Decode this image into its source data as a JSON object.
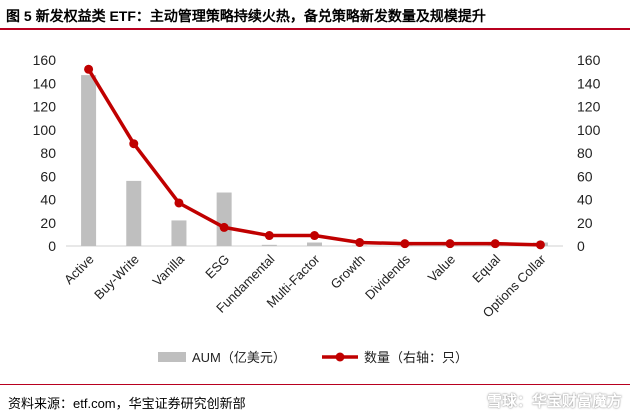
{
  "title": "图 5    新发权益类 ETF：主动管理策略持续火热，备兑策略新发数量及规模提升",
  "source": "资料来源：etf.com，华宝证券研究创新部",
  "watermark": "雪球：华宝财富魔方",
  "colors": {
    "accent": "#b8001f",
    "bar": "#bfbfbf",
    "line": "#c00000"
  },
  "chart_data": {
    "type": "bar",
    "categories": [
      "Active",
      "Buy-Write",
      "Vanilla",
      "ESG",
      "Fundamental",
      "Multi-Factor",
      "Growth",
      "Dividends",
      "Value",
      "Equal",
      "Options Collar"
    ],
    "series": [
      {
        "name": "AUM（亿美元）",
        "type": "bar",
        "axis": "left",
        "values": [
          147,
          56,
          22,
          46,
          1,
          3,
          0.5,
          0.5,
          0.5,
          0.5,
          3
        ]
      },
      {
        "name": "数量（右轴：只）",
        "type": "line",
        "axis": "right",
        "values": [
          152,
          88,
          37,
          16,
          9,
          9,
          3,
          2,
          2,
          2,
          1
        ]
      }
    ],
    "ylim": [
      0,
      160
    ],
    "y2lim": [
      0,
      160
    ],
    "yticks": [
      0,
      20,
      40,
      60,
      80,
      100,
      120,
      140,
      160
    ],
    "y2ticks": [
      0,
      20,
      40,
      60,
      80,
      100,
      120,
      140,
      160
    ],
    "legend": "bottom",
    "grid": false
  }
}
